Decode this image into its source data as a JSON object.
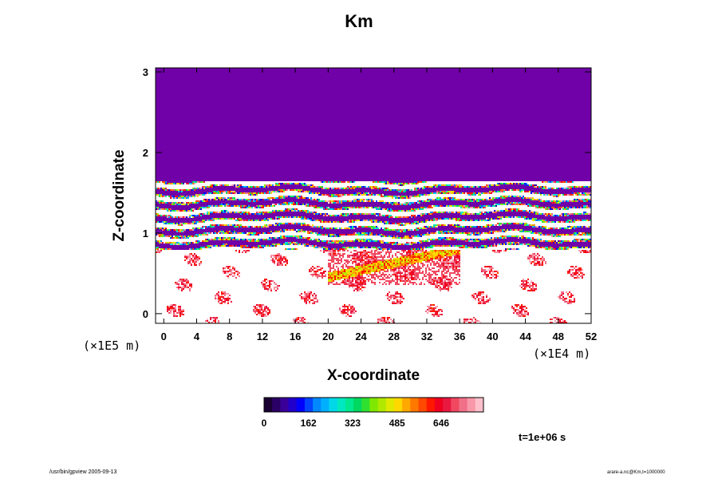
{
  "title": "Km",
  "footer": {
    "left": "/usr/bin/gpview 2005-09-13",
    "right": "arare-a.nc@Km,t=1000000"
  },
  "time_label": "t=1e+06 s",
  "chart_data": {
    "type": "heatmap",
    "title": "Km",
    "xlabel": "X-coordinate",
    "ylabel": "Z-coordinate",
    "x_unit_label": "(×1E4 m)",
    "y_unit_label": "(×1E5 m)",
    "x_ticks": [
      0,
      4,
      8,
      12,
      16,
      20,
      24,
      28,
      32,
      36,
      40,
      44,
      48,
      52
    ],
    "y_ticks": [
      0,
      1,
      2,
      3
    ],
    "xlim": [
      -1,
      52
    ],
    "ylim": [
      -0.12,
      3.05
    ],
    "colorbar": {
      "ticks": [
        0,
        162,
        323,
        485,
        646
      ],
      "range": [
        0,
        800
      ],
      "colors": [
        "#1a0033",
        "#2b0066",
        "#3a0099",
        "#2200cc",
        "#0000ff",
        "#0044ff",
        "#0088ff",
        "#00b0ff",
        "#00d8e8",
        "#00e8c0",
        "#00e890",
        "#00d860",
        "#30e030",
        "#80e800",
        "#b0e800",
        "#e0e800",
        "#ffd800",
        "#ffa800",
        "#ff7800",
        "#ff4800",
        "#ff1800",
        "#f00020",
        "#e81840",
        "#f04860",
        "#f07088",
        "#f898a8",
        "#ffc0cc"
      ]
    },
    "regions": {
      "upper_uniform_value": 0,
      "upper_uniform_z_range": [
        1.65,
        3.05
      ],
      "layered_band_z_range": [
        0.8,
        1.65
      ],
      "turbulent_zone_z_range": [
        -0.12,
        0.8
      ],
      "max_activity_x_range": [
        20,
        36
      ],
      "max_activity_z_range": [
        0.35,
        0.8
      ]
    }
  }
}
